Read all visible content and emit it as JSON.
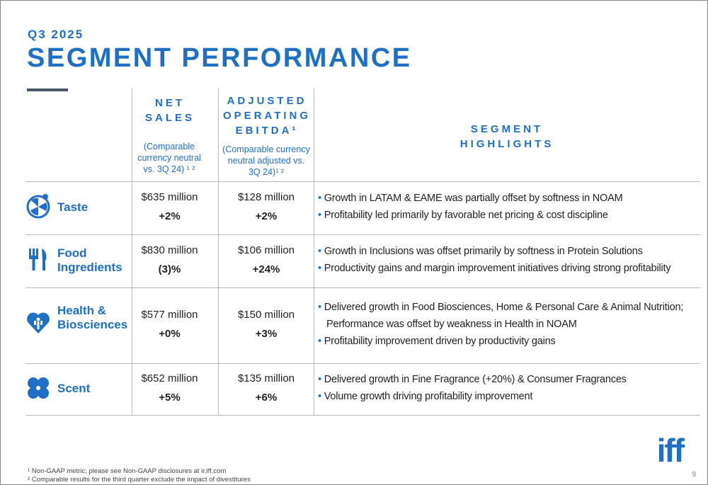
{
  "header": {
    "subtitle": "Q3 2025",
    "title": "SEGMENT PERFORMANCE"
  },
  "table": {
    "columns": [
      {
        "title": "NET SALES",
        "note": "(Comparable currency neutral vs. 3Q 24) ¹ ²"
      },
      {
        "title": "ADJUSTED OPERATING EBITDA¹",
        "note": "(Comparable currency neutral  adjusted vs. 3Q 24)¹ ²"
      },
      {
        "title": "SEGMENT HIGHLIGHTS"
      }
    ],
    "rows": [
      {
        "segment": "Taste",
        "net_sales": "$635 million",
        "net_sales_change": "+2%",
        "ebitda": "$128 million",
        "ebitda_change": "+2%",
        "highlights": [
          "Growth in LATAM & EAME was partially offset by softness in NOAM",
          "Profitability led primarily by favorable net pricing & cost discipline"
        ]
      },
      {
        "segment": "Food Ingredients",
        "net_sales": "$830 million",
        "net_sales_change": "(3)%",
        "ebitda": "$106 million",
        "ebitda_change": "+24%",
        "highlights": [
          "Growth in Inclusions was offset primarily by softness in Protein Solutions",
          "Productivity gains and margin improvement initiatives driving strong profitability"
        ]
      },
      {
        "segment": "Health & Biosciences",
        "net_sales": "$577 million",
        "net_sales_change": "+0%",
        "ebitda": "$150 million",
        "ebitda_change": "+3%",
        "highlights": [
          "Delivered growth in Food Biosciences, Home & Personal Care & Animal Nutrition; Performance was offset by weakness in Health in NOAM",
          "Profitability improvement driven by productivity gains"
        ]
      },
      {
        "segment": "Scent",
        "net_sales": "$652 million",
        "net_sales_change": "+5%",
        "ebitda": "$135 million",
        "ebitda_change": "+6%",
        "highlights": [
          "Delivered growth in Fine Fragrance (+20%) & Consumer Fragrances",
          "Volume growth driving profitability improvement"
        ]
      }
    ]
  },
  "footnotes": [
    "¹ Non-GAAP metric; please see Non-GAAP disclosures at ir.iff.com",
    "² Comparable results for the third quarter exclude the impact of divestitures"
  ],
  "logo": "iff",
  "page_number": "9"
}
